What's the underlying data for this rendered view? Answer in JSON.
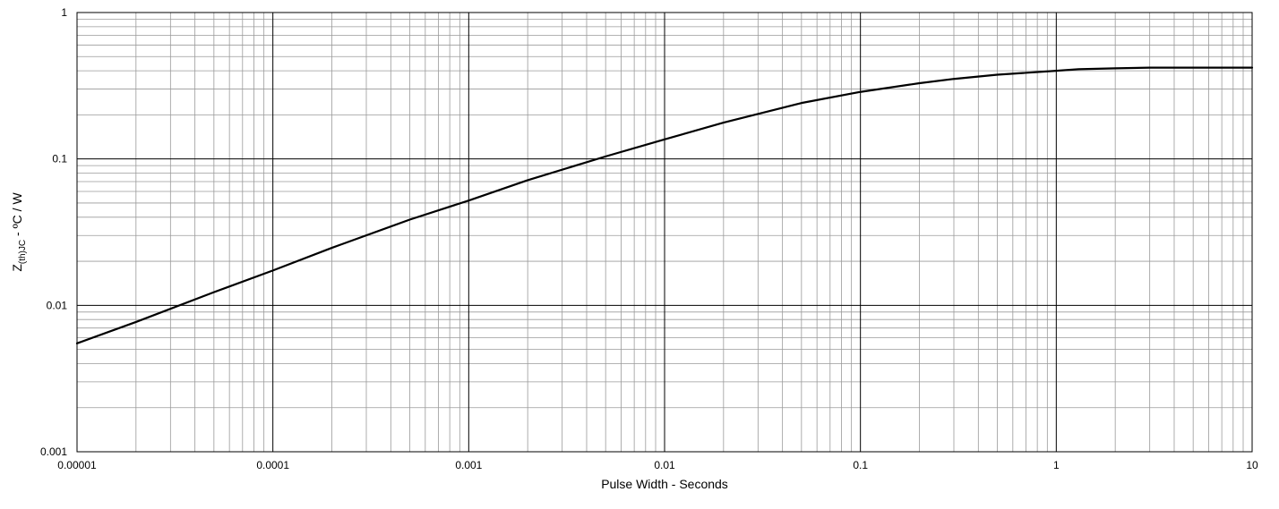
{
  "chart_data": {
    "type": "line",
    "title": "",
    "xlabel": "Pulse Width - Seconds",
    "ylabel": {
      "main": "Z",
      "subscript": "(th)JC",
      "suffix": " - ºC / W"
    },
    "x_scale": "log",
    "y_scale": "log",
    "xlim": [
      1e-05,
      10
    ],
    "ylim": [
      0.001,
      1
    ],
    "x_ticks": [
      {
        "value": 1e-05,
        "label": "0.00001"
      },
      {
        "value": 0.0001,
        "label": "0.0001"
      },
      {
        "value": 0.001,
        "label": "0.001"
      },
      {
        "value": 0.01,
        "label": "0.01"
      },
      {
        "value": 0.1,
        "label": "0.1"
      },
      {
        "value": 1,
        "label": "1"
      },
      {
        "value": 10,
        "label": "10"
      }
    ],
    "y_ticks": [
      {
        "value": 0.001,
        "label": "0.001"
      },
      {
        "value": 0.01,
        "label": "0.01"
      },
      {
        "value": 0.1,
        "label": "0.1"
      },
      {
        "value": 1,
        "label": "1"
      }
    ],
    "grid": {
      "major": true,
      "minor": true
    },
    "legend": "none",
    "series": [
      {
        "color": "#000000",
        "x": [
          1e-05,
          2e-05,
          5e-05,
          0.0001,
          0.0002,
          0.0005,
          0.001,
          0.002,
          0.005,
          0.01,
          0.02,
          0.05,
          0.1,
          0.2,
          0.3,
          0.5,
          1,
          1.3,
          2,
          3,
          5,
          10
        ],
        "y": [
          0.0055,
          0.0077,
          0.0123,
          0.0173,
          0.0247,
          0.0385,
          0.052,
          0.0716,
          0.104,
          0.136,
          0.177,
          0.241,
          0.287,
          0.329,
          0.352,
          0.376,
          0.4,
          0.41,
          0.416,
          0.42,
          0.42,
          0.42
        ]
      }
    ]
  }
}
